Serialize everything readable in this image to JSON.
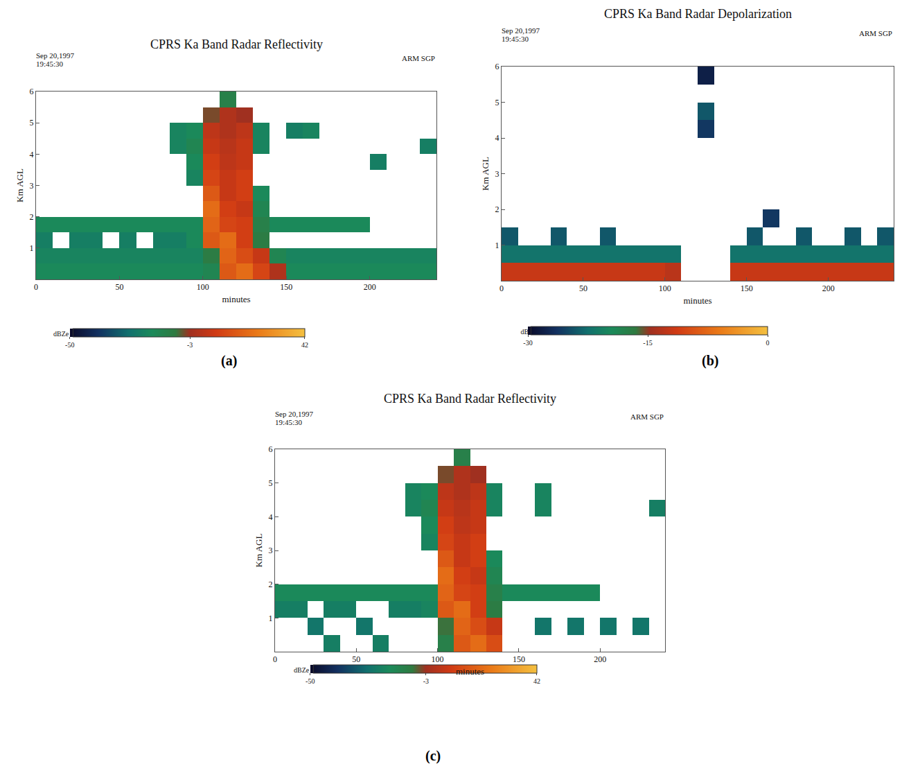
{
  "chart_data": [
    {
      "type": "heatmap",
      "label": "(a)",
      "title": "CPRS Ka Band Radar Reflectivity",
      "date": "Sep 20,1997",
      "time": "19:45:30",
      "site": "ARM SGP",
      "x_label": "minutes",
      "y_label": "Km AGL",
      "xlim": [
        0,
        240
      ],
      "ylim": [
        0,
        6
      ],
      "xticks": [
        0,
        50,
        100,
        150,
        200
      ],
      "yticks": [
        1,
        2,
        3,
        4,
        5,
        6
      ],
      "grid": false,
      "x": [
        5,
        15,
        25,
        35,
        45,
        55,
        65,
        75,
        85,
        95,
        105,
        115,
        125,
        135,
        145,
        155,
        165,
        175,
        185,
        195,
        205,
        215,
        225,
        235
      ],
      "y": [
        0.25,
        0.75,
        1.25,
        1.75,
        2.25,
        2.75,
        3.25,
        3.75,
        4.25,
        4.75,
        5.25,
        5.75
      ],
      "z": [
        [
          -18,
          -18,
          -18,
          -18,
          -18,
          -18,
          -18,
          -18,
          -18,
          -18,
          -15,
          15,
          20,
          10,
          0,
          -18,
          -18,
          -18,
          -18,
          -18,
          -18,
          -18,
          -18,
          -18
        ],
        [
          -20,
          -20,
          -20,
          -20,
          -20,
          -20,
          -20,
          -20,
          -20,
          -20,
          -10,
          18,
          12,
          5,
          -15,
          -20,
          -20,
          -20,
          -20,
          -20,
          -20,
          -20,
          -20,
          -20
        ],
        [
          -22,
          null,
          -22,
          -22,
          null,
          -22,
          null,
          -22,
          -22,
          -18,
          15,
          20,
          8,
          -10,
          null,
          null,
          null,
          null,
          null,
          null,
          null,
          null,
          null,
          null
        ],
        [
          -18,
          -18,
          -18,
          -18,
          -18,
          -18,
          -18,
          -18,
          -18,
          -18,
          18,
          10,
          8,
          -12,
          -18,
          -18,
          -18,
          -18,
          -18,
          -18,
          null,
          null,
          null,
          null
        ],
        [
          null,
          null,
          null,
          null,
          null,
          null,
          null,
          null,
          null,
          null,
          20,
          8,
          5,
          -15,
          null,
          null,
          null,
          null,
          null,
          null,
          null,
          null,
          null,
          null
        ],
        [
          null,
          null,
          null,
          null,
          null,
          null,
          null,
          null,
          null,
          null,
          15,
          5,
          8,
          -18,
          null,
          null,
          null,
          null,
          null,
          null,
          null,
          null,
          null,
          null
        ],
        [
          null,
          null,
          null,
          null,
          null,
          null,
          null,
          null,
          null,
          -20,
          10,
          5,
          8,
          null,
          null,
          null,
          null,
          null,
          null,
          null,
          null,
          null,
          null,
          null
        ],
        [
          null,
          null,
          null,
          null,
          null,
          null,
          null,
          null,
          null,
          -18,
          8,
          3,
          5,
          null,
          null,
          null,
          null,
          null,
          null,
          null,
          -22,
          null,
          null,
          null
        ],
        [
          null,
          null,
          null,
          null,
          null,
          null,
          null,
          null,
          -20,
          -15,
          5,
          2,
          5,
          -20,
          null,
          null,
          null,
          null,
          null,
          null,
          null,
          null,
          null,
          -22
        ],
        [
          null,
          null,
          null,
          null,
          null,
          null,
          null,
          null,
          -20,
          -18,
          3,
          0,
          3,
          -20,
          null,
          -22,
          -20,
          null,
          null,
          null,
          null,
          null,
          null,
          null
        ],
        [
          null,
          null,
          null,
          null,
          null,
          null,
          null,
          null,
          null,
          null,
          -5,
          0,
          -3,
          null,
          null,
          null,
          null,
          null,
          null,
          null,
          null,
          null,
          null,
          null
        ],
        [
          null,
          null,
          null,
          null,
          null,
          null,
          null,
          null,
          null,
          null,
          null,
          -12,
          null,
          null,
          null,
          null,
          null,
          null,
          null,
          null,
          null,
          null,
          null,
          null
        ]
      ],
      "colorbar": {
        "range": [
          -50,
          42
        ],
        "ticks": [
          -50,
          -3,
          42
        ],
        "title": "dBZe"
      }
    },
    {
      "type": "heatmap",
      "label": "(b)",
      "title": "CPRS Ka Band Radar Depolarization",
      "date": "Sep 20,1997",
      "time": "19:45:30",
      "site": "ARM SGP",
      "x_label": "minutes",
      "y_label": "Km AGL",
      "xlim": [
        0,
        240
      ],
      "ylim": [
        0,
        6
      ],
      "xticks": [
        0,
        50,
        100,
        150,
        200
      ],
      "yticks": [
        1,
        2,
        3,
        4,
        5,
        6
      ],
      "grid": false,
      "x": [
        5,
        15,
        25,
        35,
        45,
        55,
        65,
        75,
        85,
        95,
        105,
        115,
        125,
        135,
        145,
        155,
        165,
        175,
        185,
        195,
        205,
        215,
        225,
        235
      ],
      "y": [
        0.25,
        0.75,
        1.25,
        1.75,
        2.25,
        2.75,
        3.25,
        3.75,
        4.25,
        4.75,
        5.25,
        5.75
      ],
      "z": [
        [
          -12,
          -12,
          -12,
          -12,
          -12,
          -12,
          -12,
          -12,
          -12,
          -12,
          -13,
          null,
          null,
          null,
          -12,
          -12,
          -12,
          -12,
          -12,
          -12,
          -12,
          -12,
          -12,
          -12
        ],
        [
          -22,
          -22,
          -22,
          -22,
          -22,
          -22,
          -22,
          -22,
          -22,
          -22,
          -22,
          null,
          null,
          null,
          -22,
          -22,
          -22,
          -22,
          -22,
          -22,
          -22,
          -22,
          -22,
          -22
        ],
        [
          -24,
          null,
          null,
          -24,
          null,
          null,
          -24,
          null,
          null,
          null,
          null,
          null,
          null,
          null,
          null,
          -24,
          null,
          null,
          -24,
          null,
          null,
          -24,
          null,
          -24
        ],
        [
          null,
          null,
          null,
          null,
          null,
          null,
          null,
          null,
          null,
          null,
          null,
          null,
          null,
          null,
          null,
          null,
          -26,
          null,
          null,
          null,
          null,
          null,
          null,
          null
        ],
        [
          null,
          null,
          null,
          null,
          null,
          null,
          null,
          null,
          null,
          null,
          null,
          null,
          null,
          null,
          null,
          null,
          null,
          null,
          null,
          null,
          null,
          null,
          null,
          null
        ],
        [
          null,
          null,
          null,
          null,
          null,
          null,
          null,
          null,
          null,
          null,
          null,
          null,
          null,
          null,
          null,
          null,
          null,
          null,
          null,
          null,
          null,
          null,
          null,
          null
        ],
        [
          null,
          null,
          null,
          null,
          null,
          null,
          null,
          null,
          null,
          null,
          null,
          null,
          null,
          null,
          null,
          null,
          null,
          null,
          null,
          null,
          null,
          null,
          null,
          null
        ],
        [
          null,
          null,
          null,
          null,
          null,
          null,
          null,
          null,
          null,
          null,
          null,
          null,
          null,
          null,
          null,
          null,
          null,
          null,
          null,
          null,
          null,
          null,
          null,
          null
        ],
        [
          null,
          null,
          null,
          null,
          null,
          null,
          null,
          null,
          null,
          null,
          null,
          null,
          -26,
          null,
          null,
          null,
          null,
          null,
          null,
          null,
          null,
          null,
          null,
          null
        ],
        [
          null,
          null,
          null,
          null,
          null,
          null,
          null,
          null,
          null,
          null,
          null,
          null,
          -24,
          null,
          null,
          null,
          null,
          null,
          null,
          null,
          null,
          null,
          null,
          null
        ],
        [
          null,
          null,
          null,
          null,
          null,
          null,
          null,
          null,
          null,
          null,
          null,
          null,
          null,
          null,
          null,
          null,
          null,
          null,
          null,
          null,
          null,
          null,
          null,
          null
        ],
        [
          null,
          null,
          null,
          null,
          null,
          null,
          null,
          null,
          null,
          null,
          null,
          null,
          -28,
          null,
          null,
          null,
          null,
          null,
          null,
          null,
          null,
          null,
          null,
          null
        ]
      ],
      "colorbar": {
        "range": [
          -30,
          0
        ],
        "ticks": [
          -30,
          -15,
          0
        ],
        "title": "dB"
      }
    },
    {
      "type": "heatmap",
      "label": "(c)",
      "title": "CPRS Ka Band Radar Reflectivity",
      "date": "Sep 20,1997",
      "time": "19:45:30",
      "site": "ARM SGP",
      "x_label": "minutes",
      "y_label": "Km AGL",
      "xlim": [
        0,
        240
      ],
      "ylim": [
        0,
        6
      ],
      "xticks": [
        0,
        50,
        100,
        150,
        200
      ],
      "yticks": [
        1,
        2,
        3,
        4,
        5,
        6
      ],
      "grid": false,
      "x": [
        5,
        15,
        25,
        35,
        45,
        55,
        65,
        75,
        85,
        95,
        105,
        115,
        125,
        135,
        145,
        155,
        165,
        175,
        185,
        195,
        205,
        215,
        225,
        235
      ],
      "y": [
        0.25,
        0.75,
        1.25,
        1.75,
        2.25,
        2.75,
        3.25,
        3.75,
        4.25,
        4.75,
        5.25,
        5.75
      ],
      "z": [
        [
          null,
          null,
          null,
          -22,
          null,
          null,
          -22,
          null,
          null,
          null,
          -12,
          15,
          20,
          12,
          null,
          null,
          null,
          null,
          null,
          null,
          null,
          null,
          null,
          null
        ],
        [
          null,
          null,
          -25,
          null,
          null,
          -25,
          null,
          null,
          null,
          null,
          -8,
          18,
          12,
          5,
          null,
          null,
          -25,
          null,
          -25,
          null,
          -25,
          null,
          -25,
          null
        ],
        [
          -22,
          -22,
          null,
          -22,
          -22,
          null,
          null,
          -22,
          -22,
          -20,
          15,
          20,
          8,
          -10,
          null,
          null,
          null,
          null,
          null,
          null,
          null,
          null,
          null,
          null
        ],
        [
          -18,
          -18,
          -18,
          -18,
          -18,
          -18,
          -18,
          -18,
          -18,
          -18,
          18,
          10,
          8,
          -12,
          -18,
          -18,
          -18,
          -18,
          -18,
          -18,
          null,
          null,
          null,
          null
        ],
        [
          null,
          null,
          null,
          null,
          null,
          null,
          null,
          null,
          null,
          null,
          20,
          8,
          5,
          -15,
          null,
          null,
          null,
          null,
          null,
          null,
          null,
          null,
          null,
          null
        ],
        [
          null,
          null,
          null,
          null,
          null,
          null,
          null,
          null,
          null,
          null,
          15,
          5,
          8,
          -18,
          null,
          null,
          null,
          null,
          null,
          null,
          null,
          null,
          null,
          null
        ],
        [
          null,
          null,
          null,
          null,
          null,
          null,
          null,
          null,
          null,
          -20,
          10,
          5,
          8,
          null,
          null,
          null,
          null,
          null,
          null,
          null,
          null,
          null,
          null,
          null
        ],
        [
          null,
          null,
          null,
          null,
          null,
          null,
          null,
          null,
          null,
          -18,
          8,
          3,
          5,
          null,
          null,
          null,
          null,
          null,
          null,
          null,
          null,
          null,
          null,
          null
        ],
        [
          null,
          null,
          null,
          null,
          null,
          null,
          null,
          null,
          -20,
          -15,
          5,
          2,
          5,
          -20,
          null,
          null,
          -20,
          null,
          null,
          null,
          null,
          null,
          null,
          -22
        ],
        [
          null,
          null,
          null,
          null,
          null,
          null,
          null,
          null,
          -20,
          -18,
          3,
          0,
          3,
          -20,
          null,
          null,
          -20,
          null,
          null,
          null,
          null,
          null,
          null,
          null
        ],
        [
          null,
          null,
          null,
          null,
          null,
          null,
          null,
          null,
          null,
          null,
          -5,
          0,
          -3,
          null,
          null,
          null,
          null,
          null,
          null,
          null,
          null,
          null,
          null,
          null
        ],
        [
          null,
          null,
          null,
          null,
          null,
          null,
          null,
          null,
          null,
          null,
          null,
          -12,
          null,
          null,
          null,
          null,
          null,
          null,
          null,
          null,
          null,
          null,
          null,
          null
        ]
      ],
      "colorbar": {
        "range": [
          -50,
          42
        ],
        "ticks": [
          -50,
          -3,
          42
        ],
        "title": "dBZe"
      }
    }
  ]
}
